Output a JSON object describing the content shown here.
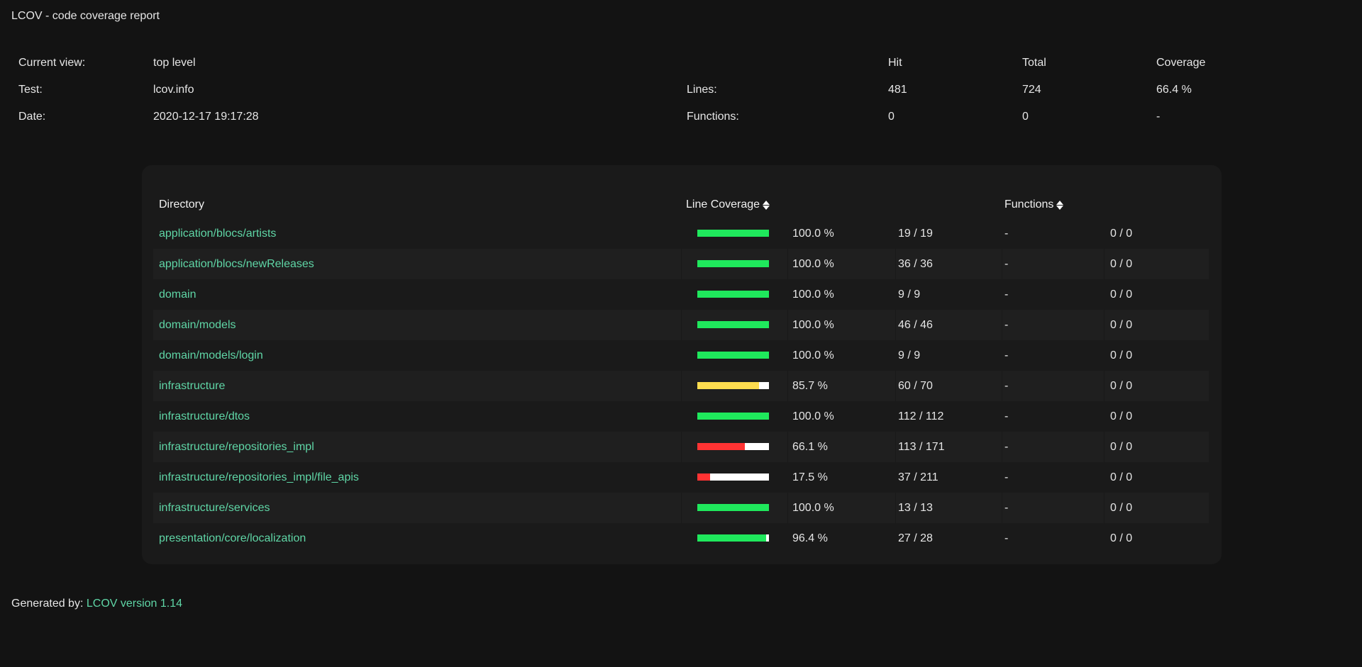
{
  "title": "LCOV - code coverage report",
  "summary": {
    "current_view_label": "Current view:",
    "current_view": "top level",
    "test_label": "Test:",
    "test": "lcov.info",
    "date_label": "Date:",
    "date": "2020-12-17 19:17:28",
    "headers": {
      "hit": "Hit",
      "total": "Total",
      "coverage": "Coverage"
    },
    "lines": {
      "label": "Lines:",
      "hit": "481",
      "total": "724",
      "coverage": "66.4 %"
    },
    "functions": {
      "label": "Functions:",
      "hit": "0",
      "total": "0",
      "coverage": "-"
    }
  },
  "table": {
    "headers": {
      "directory": "Directory",
      "line_coverage": "Line Coverage",
      "functions": "Functions"
    },
    "colors": {
      "high": "#1fe85c",
      "medium": "#ffdd4f",
      "low": "#ff3333",
      "empty": "#ffffff"
    },
    "rows": [
      {
        "dir": "application/blocs/artists",
        "percent": "100.0 %",
        "value": 100.0,
        "level": "high",
        "lines": "19 / 19",
        "func_percent": "-",
        "funcs": "0 / 0"
      },
      {
        "dir": "application/blocs/newReleases",
        "percent": "100.0 %",
        "value": 100.0,
        "level": "high",
        "lines": "36 / 36",
        "func_percent": "-",
        "funcs": "0 / 0"
      },
      {
        "dir": "domain",
        "percent": "100.0 %",
        "value": 100.0,
        "level": "high",
        "lines": "9 / 9",
        "func_percent": "-",
        "funcs": "0 / 0"
      },
      {
        "dir": "domain/models",
        "percent": "100.0 %",
        "value": 100.0,
        "level": "high",
        "lines": "46 / 46",
        "func_percent": "-",
        "funcs": "0 / 0"
      },
      {
        "dir": "domain/models/login",
        "percent": "100.0 %",
        "value": 100.0,
        "level": "high",
        "lines": "9 / 9",
        "func_percent": "-",
        "funcs": "0 / 0"
      },
      {
        "dir": "infrastructure",
        "percent": "85.7 %",
        "value": 85.7,
        "level": "medium",
        "lines": "60 / 70",
        "func_percent": "-",
        "funcs": "0 / 0"
      },
      {
        "dir": "infrastructure/dtos",
        "percent": "100.0 %",
        "value": 100.0,
        "level": "high",
        "lines": "112 / 112",
        "func_percent": "-",
        "funcs": "0 / 0"
      },
      {
        "dir": "infrastructure/repositories_impl",
        "percent": "66.1 %",
        "value": 66.1,
        "level": "low",
        "lines": "113 / 171",
        "func_percent": "-",
        "funcs": "0 / 0"
      },
      {
        "dir": "infrastructure/repositories_impl/file_apis",
        "percent": "17.5 %",
        "value": 17.5,
        "level": "low",
        "lines": "37 / 211",
        "func_percent": "-",
        "funcs": "0 / 0"
      },
      {
        "dir": "infrastructure/services",
        "percent": "100.0 %",
        "value": 100.0,
        "level": "high",
        "lines": "13 / 13",
        "func_percent": "-",
        "funcs": "0 / 0"
      },
      {
        "dir": "presentation/core/localization",
        "percent": "96.4 %",
        "value": 96.4,
        "level": "high",
        "lines": "27 / 28",
        "func_percent": "-",
        "funcs": "0 / 0"
      }
    ]
  },
  "footer": {
    "label": "Generated by:",
    "link": "LCOV version 1.14"
  }
}
